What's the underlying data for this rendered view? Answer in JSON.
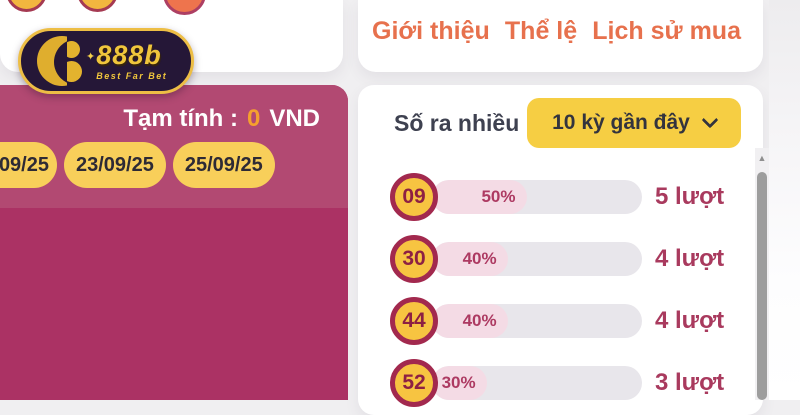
{
  "logo": {
    "brand": "888b",
    "tagline": "Best Far Bet"
  },
  "nav": {
    "items": [
      "Giới thiệu",
      "Thể lệ",
      "Lịch sử mua"
    ]
  },
  "summary": {
    "label": "Tạm tính :",
    "amount": "0",
    "currency": "VND"
  },
  "dates": [
    "09/25",
    "23/09/25",
    "25/09/25"
  ],
  "stats": {
    "title": "Số ra nhiều",
    "filter_selected": "10 kỳ gần đây",
    "rows": [
      {
        "num": "09",
        "percent": "50%",
        "fill": 45,
        "count": "5 lượt"
      },
      {
        "num": "30",
        "percent": "40%",
        "fill": 36,
        "count": "4 lượt"
      },
      {
        "num": "44",
        "percent": "40%",
        "fill": 36,
        "count": "4 lượt"
      },
      {
        "num": "52",
        "percent": "30%",
        "fill": 26,
        "count": "3 lượt"
      }
    ]
  },
  "colors": {
    "panel_magenta_dark": "#ab3264",
    "panel_magenta_light": "#b24972",
    "accent_yellow": "#f6ce43",
    "pill_yellow": "#f8cf5a",
    "nav_orange": "#e7714d",
    "count_crimson": "#a93a5e",
    "circle_border": "#a2294e",
    "bar_fill_pink": "#f4dbe5",
    "bar_track_gray": "#e8e6eb",
    "amount_orange": "#f5a02e",
    "logo_gold": "#f0c63c",
    "logo_bg": "#251737"
  }
}
